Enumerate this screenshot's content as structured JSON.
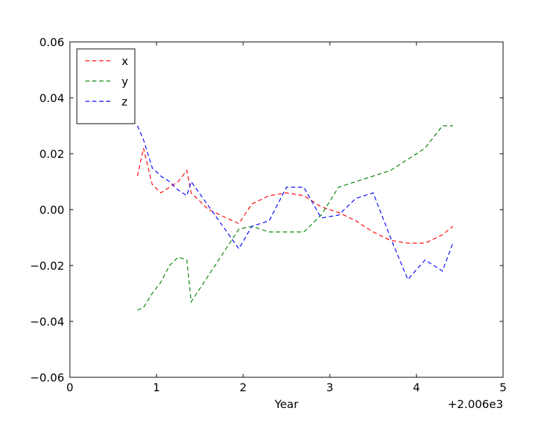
{
  "chart_data": {
    "type": "line",
    "title": "",
    "xlabel": "Year",
    "ylabel": "",
    "x_offset_label": "+2.006e3",
    "xlim": [
      0,
      5
    ],
    "ylim": [
      -0.06,
      0.06
    ],
    "x_ticks": [
      0,
      1,
      2,
      3,
      4,
      5
    ],
    "x_tick_labels": [
      "0",
      "1",
      "2",
      "3",
      "4",
      "5"
    ],
    "y_ticks": [
      -0.06,
      -0.04,
      -0.02,
      0.0,
      0.02,
      0.04,
      0.06
    ],
    "y_tick_labels": [
      "−0.06",
      "−0.04",
      "−0.02",
      "0.00",
      "0.02",
      "0.04",
      "0.06"
    ],
    "grid": false,
    "legend_position": "top-left",
    "line_style": "dashed",
    "series": [
      {
        "name": "x",
        "color": "#ff0000",
        "x": [
          0.78,
          0.85,
          0.95,
          1.05,
          1.15,
          1.25,
          1.35,
          1.4,
          1.6,
          1.95,
          2.1,
          2.3,
          2.5,
          2.7,
          2.9,
          3.1,
          3.3,
          3.5,
          3.7,
          3.9,
          4.1,
          4.3,
          4.42
        ],
        "y": [
          0.012,
          0.022,
          0.009,
          0.006,
          0.008,
          0.01,
          0.014,
          0.006,
          0.0,
          -0.005,
          0.002,
          0.005,
          0.006,
          0.005,
          0.001,
          -0.001,
          -0.004,
          -0.008,
          -0.011,
          -0.012,
          -0.012,
          -0.009,
          -0.006
        ]
      },
      {
        "name": "y",
        "color": "#008000",
        "x": [
          0.78,
          0.85,
          0.95,
          1.05,
          1.15,
          1.25,
          1.35,
          1.4,
          1.95,
          2.1,
          2.3,
          2.5,
          2.7,
          2.9,
          3.1,
          3.3,
          3.5,
          3.7,
          3.9,
          4.1,
          4.3,
          4.42
        ],
        "y": [
          -0.036,
          -0.035,
          -0.03,
          -0.026,
          -0.02,
          -0.017,
          -0.018,
          -0.033,
          -0.007,
          -0.006,
          -0.008,
          -0.008,
          -0.008,
          -0.002,
          0.008,
          0.01,
          0.012,
          0.014,
          0.018,
          0.022,
          0.03,
          0.03
        ]
      },
      {
        "name": "z",
        "color": "#0000ff",
        "x": [
          0.78,
          0.85,
          0.95,
          1.05,
          1.15,
          1.25,
          1.35,
          1.4,
          1.95,
          2.1,
          2.3,
          2.5,
          2.7,
          2.9,
          3.1,
          3.3,
          3.5,
          3.7,
          3.9,
          4.1,
          4.3,
          4.42
        ],
        "y": [
          0.03,
          0.025,
          0.015,
          0.012,
          0.01,
          0.007,
          0.005,
          0.01,
          -0.014,
          -0.006,
          -0.004,
          0.008,
          0.008,
          -0.003,
          -0.002,
          0.004,
          0.006,
          -0.01,
          -0.025,
          -0.018,
          -0.022,
          -0.012
        ]
      }
    ]
  }
}
